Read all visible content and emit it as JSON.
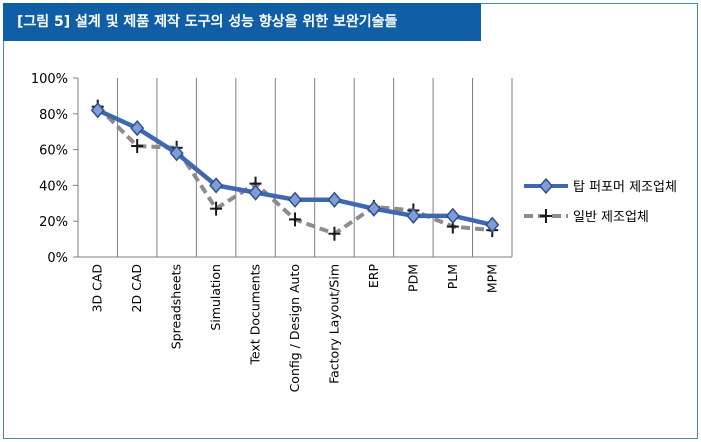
{
  "chart_data": {
    "type": "line",
    "title": "[그림 5] 설계 및 제품 제작 도구의 성능 향상을 위한 보완기술들",
    "categories": [
      "3D CAD",
      "2D CAD",
      "Spreadsheets",
      "Simulation",
      "Text Documents",
      "Config / Design Auto",
      "Factory Layout/Sim",
      "ERP",
      "PDM",
      "PLM",
      "MPM"
    ],
    "y_ticks": [
      "0%",
      "20%",
      "40%",
      "60%",
      "80%",
      "100%"
    ],
    "ylim": [
      0,
      100
    ],
    "grid": "vertical",
    "legend_position": "right",
    "series": [
      {
        "name": "탑 퍼포머 제조업체",
        "values": [
          82,
          72,
          58,
          40,
          36,
          32,
          32,
          27,
          23,
          23,
          18
        ],
        "color": "#3f68b0",
        "marker": "diamond",
        "style": "solid"
      },
      {
        "name": "일반 제조업체",
        "values": [
          84,
          62,
          61,
          27,
          41,
          21,
          13,
          28,
          26,
          17,
          15
        ],
        "color": "#8c8c8c",
        "marker": "cross",
        "style": "dashed"
      }
    ]
  }
}
